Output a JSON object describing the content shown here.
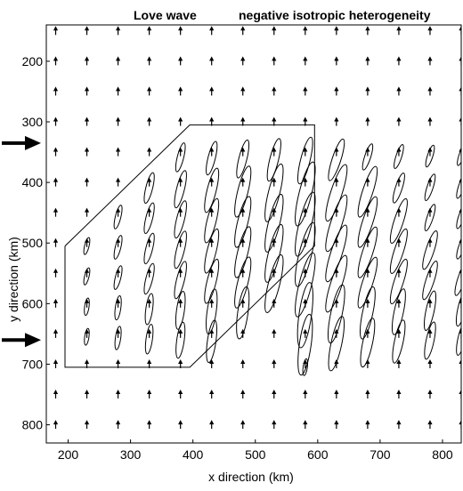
{
  "chart_data": {
    "type": "vector-field",
    "title_left": "Love wave",
    "title_right": "negative isotropic heterogeneity",
    "xlabel": "x  direction (km)",
    "ylabel": "y  direction (km)",
    "xlim": [
      165,
      830
    ],
    "ylim": [
      830,
      140
    ],
    "x_ticks": [
      200,
      300,
      400,
      500,
      600,
      700,
      800
    ],
    "y_ticks": [
      200,
      300,
      400,
      500,
      600,
      700,
      800
    ],
    "grid_x": [
      180,
      230,
      280,
      330,
      380,
      430,
      480,
      530,
      580,
      630,
      680,
      730,
      780,
      830
    ],
    "grid_y": [
      150,
      200,
      250,
      300,
      350,
      400,
      450,
      500,
      550,
      600,
      650,
      700,
      750,
      800
    ],
    "heterogeneity_region": {
      "x": [
        195,
        395,
        595,
        595,
        395,
        195,
        195
      ],
      "y": [
        505,
        305,
        305,
        505,
        705,
        705,
        505
      ]
    },
    "incidence_arrows_y": [
      335,
      660
    ],
    "stroke_color": "#000000",
    "background": "#ffffff"
  }
}
